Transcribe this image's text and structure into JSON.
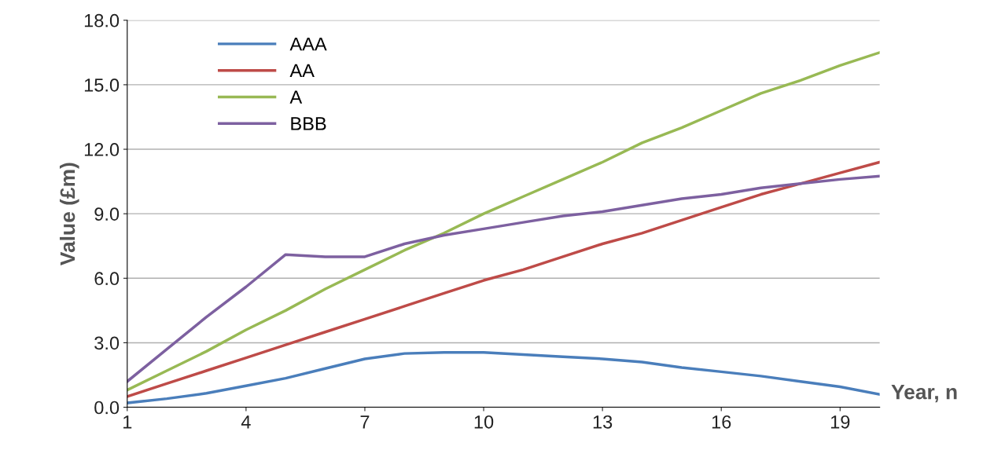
{
  "chart_data": {
    "type": "line",
    "xlabel": "Year, n",
    "ylabel": "Value (£m)",
    "x": [
      1,
      2,
      3,
      4,
      5,
      6,
      7,
      8,
      9,
      10,
      11,
      12,
      13,
      14,
      15,
      16,
      17,
      18,
      19,
      20
    ],
    "series": [
      {
        "name": "AAA",
        "color": "#4a7ebb",
        "values": [
          0.2,
          0.4,
          0.65,
          1.0,
          1.35,
          1.8,
          2.25,
          2.5,
          2.55,
          2.55,
          2.45,
          2.35,
          2.25,
          2.1,
          1.85,
          1.65,
          1.45,
          1.2,
          0.95,
          0.6
        ]
      },
      {
        "name": "AA",
        "color": "#be4b48",
        "values": [
          0.5,
          1.1,
          1.7,
          2.3,
          2.9,
          3.5,
          4.1,
          4.7,
          5.3,
          5.9,
          6.4,
          7.0,
          7.6,
          8.1,
          8.7,
          9.3,
          9.9,
          10.4,
          10.9,
          11.4
        ]
      },
      {
        "name": "A",
        "color": "#98b954",
        "values": [
          0.8,
          1.7,
          2.6,
          3.6,
          4.5,
          5.5,
          6.4,
          7.3,
          8.1,
          9.0,
          9.8,
          10.6,
          11.4,
          12.3,
          13.0,
          13.8,
          14.6,
          15.2,
          15.9,
          16.5
        ]
      },
      {
        "name": "BBB",
        "color": "#7d60a0",
        "values": [
          1.2,
          2.7,
          4.2,
          5.6,
          7.1,
          7.0,
          7.0,
          7.6,
          8.0,
          8.3,
          8.6,
          8.9,
          9.1,
          9.4,
          9.7,
          9.9,
          10.2,
          10.4,
          10.6,
          10.75
        ]
      }
    ],
    "xlim": [
      1,
      20
    ],
    "xticks": [
      1,
      4,
      7,
      10,
      13,
      16,
      19
    ],
    "ylim": [
      0,
      18
    ],
    "yticks": [
      {
        "value": 0,
        "label": "0.0"
      },
      {
        "value": 3,
        "label": "3.0"
      },
      {
        "value": 6,
        "label": "6.0"
      },
      {
        "value": 9,
        "label": "9.0"
      },
      {
        "value": 12,
        "label": "12.0"
      },
      {
        "value": 15,
        "label": "15.0"
      },
      {
        "value": 18,
        "label": "18.0"
      }
    ],
    "grid": "y",
    "legend": "top left",
    "marker": "none",
    "line_style": "solid"
  }
}
